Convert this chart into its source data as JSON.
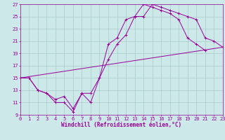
{
  "background_color": "#cce8e8",
  "grid_color": "#aacccc",
  "line_color": "#990099",
  "xlim": [
    0,
    23
  ],
  "ylim": [
    9,
    27
  ],
  "xticks": [
    0,
    1,
    2,
    3,
    4,
    5,
    6,
    7,
    8,
    9,
    10,
    11,
    12,
    13,
    14,
    15,
    16,
    17,
    18,
    19,
    20,
    21,
    22,
    23
  ],
  "yticks": [
    9,
    11,
    13,
    15,
    17,
    19,
    21,
    23,
    25,
    27
  ],
  "xlabel": "Windchill (Refroidissement éolien,°C)",
  "xlabel_fontsize": 5.5,
  "tick_fontsize": 5.0,
  "curve1_x": [
    0,
    1,
    2,
    3,
    4,
    5,
    6,
    7,
    8,
    9,
    10,
    11,
    12,
    13,
    14,
    15,
    16,
    17,
    18,
    19,
    20,
    21,
    22,
    23
  ],
  "curve1_y": [
    15,
    15,
    13,
    12.5,
    11,
    11,
    9.5,
    12.5,
    11,
    15,
    20.5,
    21.5,
    24.5,
    25,
    27,
    26.5,
    26,
    25.5,
    24.5,
    21.5,
    20.5,
    19.5,
    null,
    null
  ],
  "curve2_x": [
    0,
    1,
    2,
    3,
    4,
    5,
    6,
    7,
    8,
    9,
    10,
    11,
    12,
    13,
    14,
    15,
    16,
    17,
    18,
    19,
    20,
    21,
    22,
    23
  ],
  "curve2_y": [
    15,
    15,
    13,
    12.5,
    11.5,
    12,
    10,
    12.5,
    12.5,
    15,
    18,
    20.5,
    22,
    25,
    25,
    27,
    26.5,
    26,
    25.5,
    25,
    24.5,
    21.5,
    21,
    20
  ],
  "curve3_x": [
    0,
    23
  ],
  "curve3_y": [
    15,
    20
  ]
}
